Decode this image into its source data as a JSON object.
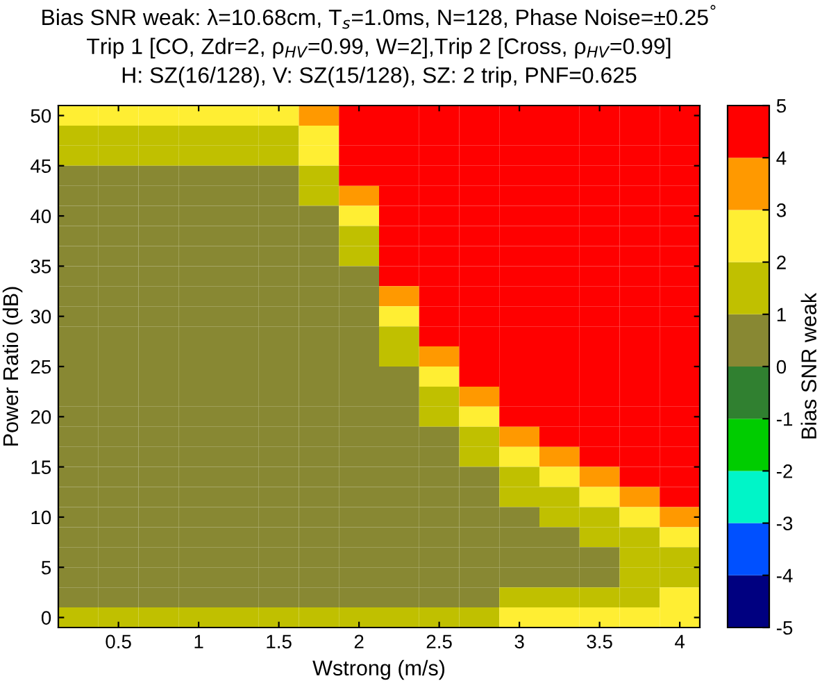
{
  "chart_data": {
    "type": "heatmap",
    "title": "Bias SNR weak: λ=10.68cm, T$_{s}$=1.0ms, N=128, Phase Noise=±0.25$^{°}$\nTrip 1 [CO, Zdr=2, ρ$_{HV}$=0.99, W=2],Trip 2 [Cross, ρ$_{HV}$=0.99]\nH: SZ(16/128), V: SZ(15/128), SZ: 2 trip, PNF=0.625",
    "xlabel": "Wstrong (m/s)",
    "ylabel": "Power Ratio (dB)",
    "clabel": "Bias SNR weak",
    "x": [
      0.25,
      0.5,
      0.75,
      1.0,
      1.25,
      1.5,
      1.75,
      2.0,
      2.25,
      2.5,
      2.75,
      3.0,
      3.25,
      3.5,
      3.75,
      4.0
    ],
    "y": [
      50,
      48,
      46,
      44,
      42,
      40,
      38,
      36,
      34,
      32,
      30,
      28,
      26,
      24,
      22,
      20,
      18,
      16,
      14,
      12,
      10,
      8,
      6,
      4,
      2,
      0
    ],
    "xlim": [
      0.125,
      4.125
    ],
    "ylim": [
      -1,
      51
    ],
    "xticks": [
      0.5,
      1,
      1.5,
      2,
      2.5,
      3,
      3.5,
      4
    ],
    "yticks": [
      0,
      5,
      10,
      15,
      20,
      25,
      30,
      35,
      40,
      45,
      50
    ],
    "clim": [
      -5,
      5
    ],
    "cticks": [
      -5,
      -4,
      -3,
      -2,
      -1,
      0,
      1,
      2,
      3,
      4,
      5
    ],
    "colors": [
      "#000080",
      "#0050ff",
      "#00f5c8",
      "#00cc00",
      "#308030",
      "#888833",
      "#c0c000",
      "#ffee33",
      "#ff9900",
      "#ff0000"
    ],
    "cells": [
      [
        2.5,
        2.5,
        2.5,
        2.5,
        2.5,
        2.5,
        3.5,
        4.5,
        4.5,
        4.5,
        4.5,
        4.5,
        4.5,
        4.5,
        4.5,
        4.5
      ],
      [
        1.5,
        1.5,
        1.5,
        1.5,
        1.5,
        1.5,
        2.5,
        4.5,
        4.5,
        4.5,
        4.5,
        4.5,
        4.5,
        4.5,
        4.5,
        4.5
      ],
      [
        1.5,
        1.5,
        1.5,
        1.5,
        1.5,
        1.5,
        2.5,
        4.5,
        4.5,
        4.5,
        4.5,
        4.5,
        4.5,
        4.5,
        4.5,
        4.5
      ],
      [
        0.5,
        0.5,
        0.5,
        0.5,
        0.5,
        0.5,
        1.5,
        4.5,
        4.5,
        4.5,
        4.5,
        4.5,
        4.5,
        4.5,
        4.5,
        4.5
      ],
      [
        0.5,
        0.5,
        0.5,
        0.5,
        0.5,
        0.5,
        1.5,
        3.5,
        4.5,
        4.5,
        4.5,
        4.5,
        4.5,
        4.5,
        4.5,
        4.5
      ],
      [
        0.5,
        0.5,
        0.5,
        0.5,
        0.5,
        0.5,
        0.5,
        2.5,
        4.5,
        4.5,
        4.5,
        4.5,
        4.5,
        4.5,
        4.5,
        4.5
      ],
      [
        0.5,
        0.5,
        0.5,
        0.5,
        0.5,
        0.5,
        0.5,
        1.5,
        4.5,
        4.5,
        4.5,
        4.5,
        4.5,
        4.5,
        4.5,
        4.5
      ],
      [
        0.5,
        0.5,
        0.5,
        0.5,
        0.5,
        0.5,
        0.5,
        1.5,
        4.5,
        4.5,
        4.5,
        4.5,
        4.5,
        4.5,
        4.5,
        4.5
      ],
      [
        0.5,
        0.5,
        0.5,
        0.5,
        0.5,
        0.5,
        0.5,
        0.5,
        4.5,
        4.5,
        4.5,
        4.5,
        4.5,
        4.5,
        4.5,
        4.5
      ],
      [
        0.5,
        0.5,
        0.5,
        0.5,
        0.5,
        0.5,
        0.5,
        0.5,
        3.5,
        4.5,
        4.5,
        4.5,
        4.5,
        4.5,
        4.5,
        4.5
      ],
      [
        0.5,
        0.5,
        0.5,
        0.5,
        0.5,
        0.5,
        0.5,
        0.5,
        2.5,
        4.5,
        4.5,
        4.5,
        4.5,
        4.5,
        4.5,
        4.5
      ],
      [
        0.5,
        0.5,
        0.5,
        0.5,
        0.5,
        0.5,
        0.5,
        0.5,
        1.5,
        4.5,
        4.5,
        4.5,
        4.5,
        4.5,
        4.5,
        4.5
      ],
      [
        0.5,
        0.5,
        0.5,
        0.5,
        0.5,
        0.5,
        0.5,
        0.5,
        1.5,
        3.5,
        4.5,
        4.5,
        4.5,
        4.5,
        4.5,
        4.5
      ],
      [
        0.5,
        0.5,
        0.5,
        0.5,
        0.5,
        0.5,
        0.5,
        0.5,
        0.5,
        2.5,
        4.5,
        4.5,
        4.5,
        4.5,
        4.5,
        4.5
      ],
      [
        0.5,
        0.5,
        0.5,
        0.5,
        0.5,
        0.5,
        0.5,
        0.5,
        0.5,
        1.5,
        3.5,
        4.5,
        4.5,
        4.5,
        4.5,
        4.5
      ],
      [
        0.5,
        0.5,
        0.5,
        0.5,
        0.5,
        0.5,
        0.5,
        0.5,
        0.5,
        1.5,
        2.5,
        4.5,
        4.5,
        4.5,
        4.5,
        4.5
      ],
      [
        0.5,
        0.5,
        0.5,
        0.5,
        0.5,
        0.5,
        0.5,
        0.5,
        0.5,
        0.5,
        1.5,
        3.5,
        4.5,
        4.5,
        4.5,
        4.5
      ],
      [
        0.5,
        0.5,
        0.5,
        0.5,
        0.5,
        0.5,
        0.5,
        0.5,
        0.5,
        0.5,
        1.5,
        2.5,
        3.5,
        4.5,
        4.5,
        4.5
      ],
      [
        0.5,
        0.5,
        0.5,
        0.5,
        0.5,
        0.5,
        0.5,
        0.5,
        0.5,
        0.5,
        0.5,
        1.5,
        2.5,
        3.5,
        4.5,
        4.5
      ],
      [
        0.5,
        0.5,
        0.5,
        0.5,
        0.5,
        0.5,
        0.5,
        0.5,
        0.5,
        0.5,
        0.5,
        1.5,
        1.5,
        2.5,
        3.5,
        4.5
      ],
      [
        0.5,
        0.5,
        0.5,
        0.5,
        0.5,
        0.5,
        0.5,
        0.5,
        0.5,
        0.5,
        0.5,
        0.5,
        1.5,
        1.5,
        2.5,
        3.5
      ],
      [
        0.5,
        0.5,
        0.5,
        0.5,
        0.5,
        0.5,
        0.5,
        0.5,
        0.5,
        0.5,
        0.5,
        0.5,
        0.5,
        1.5,
        1.5,
        2.5
      ],
      [
        0.5,
        0.5,
        0.5,
        0.5,
        0.5,
        0.5,
        0.5,
        0.5,
        0.5,
        0.5,
        0.5,
        0.5,
        0.5,
        0.5,
        1.5,
        1.5
      ],
      [
        0.5,
        0.5,
        0.5,
        0.5,
        0.5,
        0.5,
        0.5,
        0.5,
        0.5,
        0.5,
        0.5,
        0.5,
        0.5,
        0.5,
        1.5,
        1.5
      ],
      [
        0.5,
        0.5,
        0.5,
        0.5,
        0.5,
        0.5,
        0.5,
        0.5,
        0.5,
        0.5,
        0.5,
        1.5,
        1.5,
        1.5,
        1.5,
        2.5
      ],
      [
        1.5,
        1.5,
        1.5,
        1.5,
        1.5,
        1.5,
        1.5,
        1.5,
        1.5,
        1.5,
        1.5,
        2.5,
        2.5,
        2.5,
        2.5,
        2.5
      ]
    ]
  }
}
